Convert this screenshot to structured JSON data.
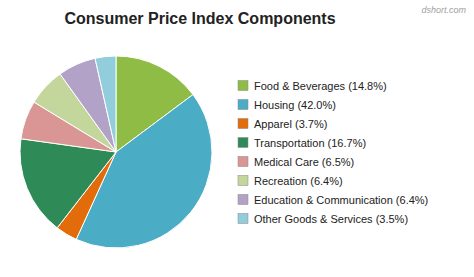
{
  "chart_data": {
    "type": "pie",
    "title": "Consumer Price Index Components",
    "annotations": [
      "dshort.com"
    ],
    "categories": [
      "Food & Beverages (14.8%)",
      "Housing (42.0%)",
      "Apparel (3.7%)",
      "Transportation (16.7%)",
      "Medical Care (6.5%)",
      "Recreation (6.4%)",
      "Education & Communication (6.4%)",
      "Other Goods & Services (3.5%)"
    ],
    "values": [
      14.8,
      42.0,
      3.7,
      16.7,
      6.5,
      6.4,
      6.4,
      3.5
    ],
    "colors": [
      "#8fbc45",
      "#4bacc6",
      "#e36c0a",
      "#2e8b57",
      "#d99694",
      "#c3d69b",
      "#b3a2c7",
      "#92cddc"
    ],
    "legend": "right"
  }
}
